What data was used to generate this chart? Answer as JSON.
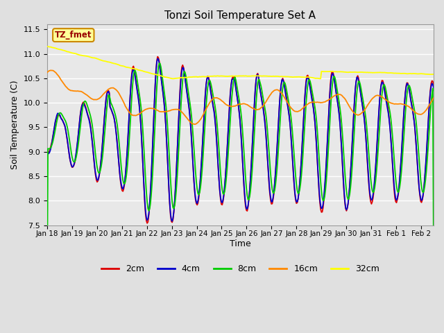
{
  "title": "Tonzi Soil Temperature Set A",
  "xlabel": "Time",
  "ylabel": "Soil Temperature (C)",
  "ylim": [
    7.5,
    11.6
  ],
  "background_color": "#e0e0e0",
  "plot_bg_color": "#e8e8e8",
  "legend_label": "TZ_fmet",
  "legend_box_color": "#ffff99",
  "legend_border_color": "#cc8800",
  "series_colors": {
    "2cm": "#dd0000",
    "4cm": "#0000cc",
    "8cm": "#00cc00",
    "16cm": "#ff8800",
    "32cm": "#ffff00"
  },
  "tick_labels": [
    "Jan 18",
    "Jan 19",
    "Jan 20",
    "Jan 21",
    "Jan 22",
    "Jan 23",
    "Jan 24",
    "Jan 25",
    "Jan 26",
    "Jan 27",
    "Jan 28",
    "Jan 29",
    "Jan 30",
    "Jan 31",
    "Feb 1",
    "Feb 2"
  ],
  "n_points": 480,
  "seed": 42
}
